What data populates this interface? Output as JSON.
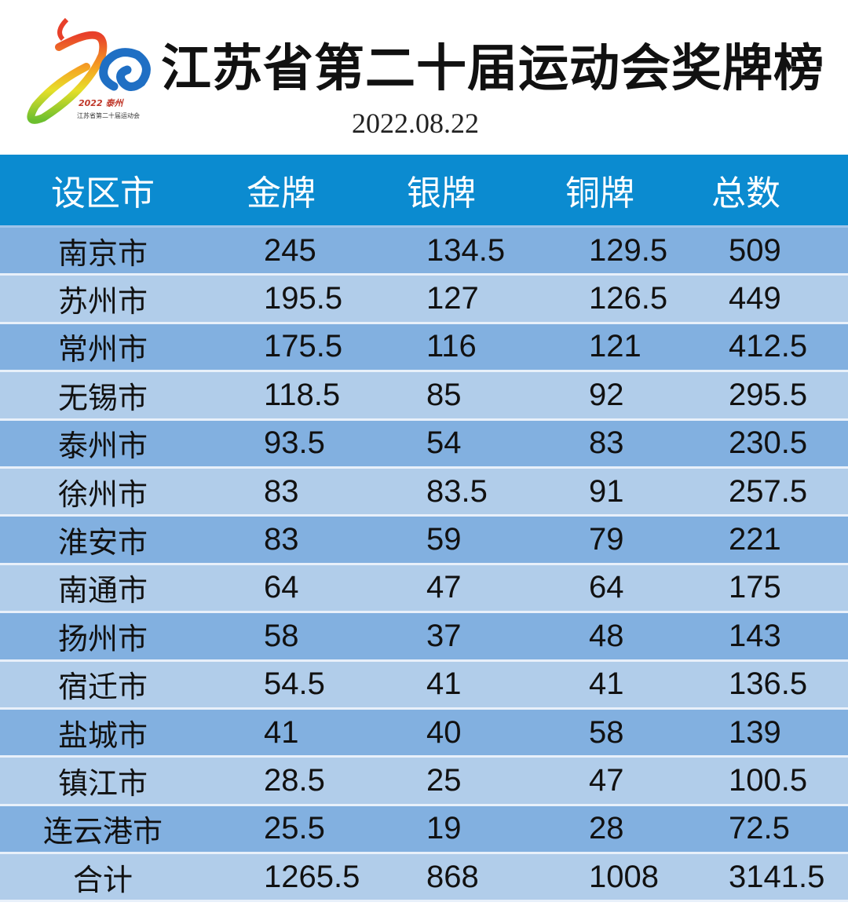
{
  "header": {
    "title": "江苏省第二十届运动会奖牌榜",
    "date": "2022.08.22",
    "logo_text": "2022 泰州 江苏省第二十届运动会"
  },
  "colors": {
    "header_bg": "#0b8bd0",
    "row_dark": "#82b0e0",
    "row_light": "#b1cdea"
  },
  "table": {
    "columns": [
      "设区市",
      "金牌",
      "银牌",
      "铜牌",
      "总数"
    ],
    "rows": [
      [
        "南京市",
        "245",
        "134.5",
        "129.5",
        "509"
      ],
      [
        "苏州市",
        "195.5",
        "127",
        "126.5",
        "449"
      ],
      [
        "常州市",
        "175.5",
        "116",
        "121",
        "412.5"
      ],
      [
        "无锡市",
        "118.5",
        "85",
        "92",
        "295.5"
      ],
      [
        "泰州市",
        "93.5",
        "54",
        "83",
        "230.5"
      ],
      [
        "徐州市",
        "83",
        "83.5",
        "91",
        "257.5"
      ],
      [
        "淮安市",
        "83",
        "59",
        "79",
        "221"
      ],
      [
        "南通市",
        "64",
        "47",
        "64",
        "175"
      ],
      [
        "扬州市",
        "58",
        "37",
        "48",
        "143"
      ],
      [
        "宿迁市",
        "54.5",
        "41",
        "41",
        "136.5"
      ],
      [
        "盐城市",
        "41",
        "40",
        "58",
        "139"
      ],
      [
        "镇江市",
        "28.5",
        "25",
        "47",
        "100.5"
      ],
      [
        "连云港市",
        "25.5",
        "19",
        "28",
        "72.5"
      ],
      [
        "合计",
        "1265.5",
        "868",
        "1008",
        "3141.5"
      ]
    ]
  }
}
